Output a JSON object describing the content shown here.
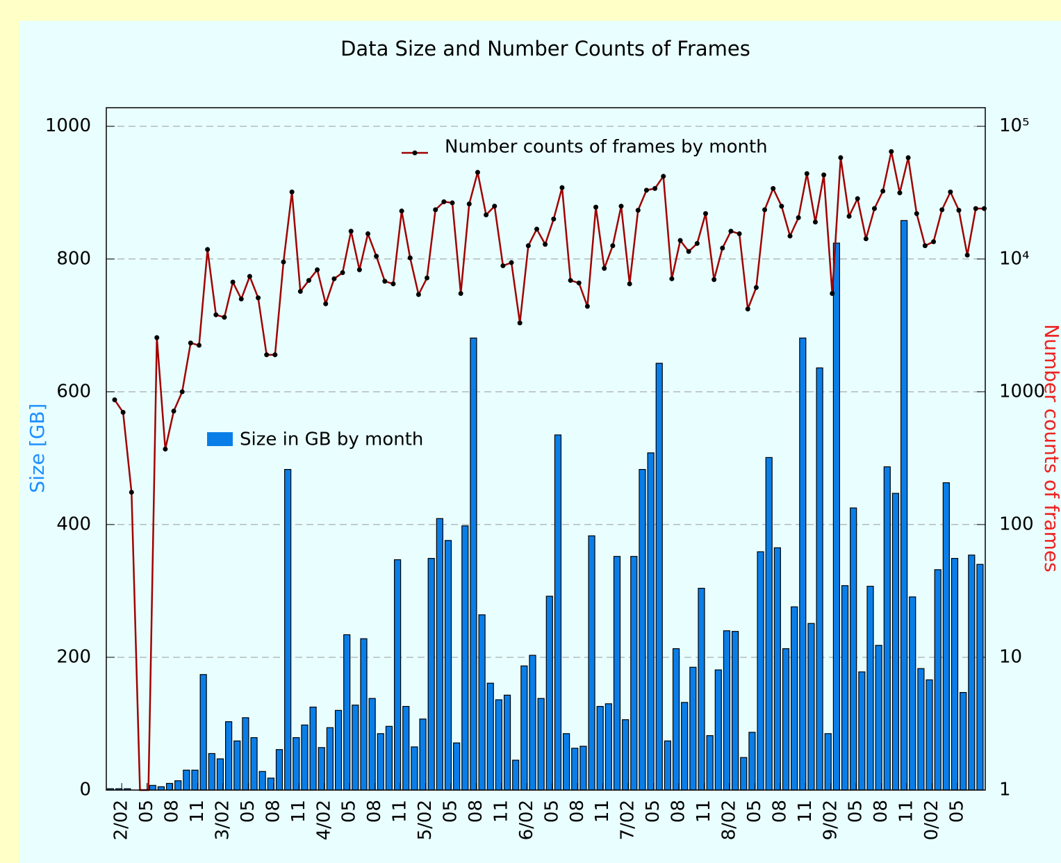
{
  "chart_data": {
    "type": "bar",
    "title": "Data Size and Number Counts of Frames",
    "y_label": "Size [GB]",
    "y2_label": "Number counts of frames",
    "categories": [
      null,
      "2/02",
      null,
      null,
      "05",
      null,
      null,
      "08",
      null,
      null,
      "11",
      null,
      null,
      "3/02",
      null,
      null,
      "05",
      null,
      null,
      "08",
      null,
      null,
      "11",
      null,
      null,
      "4/02",
      null,
      null,
      "05",
      null,
      null,
      "08",
      null,
      null,
      "11",
      null,
      null,
      "5/02",
      null,
      null,
      "05",
      null,
      null,
      "08",
      null,
      null,
      "11",
      null,
      null,
      "6/02",
      null,
      null,
      "05",
      null,
      null,
      "08",
      null,
      null,
      "11",
      null,
      null,
      "7/02",
      null,
      null,
      "05",
      null,
      null,
      "08",
      null,
      null,
      "11",
      null,
      null,
      "8/02",
      null,
      null,
      "05",
      null,
      null,
      "08",
      null,
      null,
      "11",
      null,
      null,
      "9/02",
      null,
      null,
      "05",
      null,
      null,
      "08",
      null,
      null,
      "11",
      null,
      null,
      "0/02",
      null,
      null,
      "05",
      null,
      null,
      null
    ],
    "series": [
      {
        "name": "Size in GB by month",
        "type": "bar",
        "axis": "y",
        "color": "#0a7ee8",
        "values": [
          2,
          2,
          2,
          0,
          0,
          7,
          5,
          10,
          14,
          30,
          30,
          174,
          55,
          47,
          103,
          74,
          109,
          79,
          28,
          18,
          61,
          483,
          79,
          98,
          125,
          64,
          94,
          120,
          234,
          128,
          228,
          138,
          85,
          96,
          347,
          126,
          65,
          107,
          349,
          409,
          376,
          71,
          398,
          681,
          264,
          161,
          136,
          143,
          45,
          187,
          203,
          138,
          292,
          535,
          85,
          63,
          66,
          383,
          126,
          130,
          352,
          106,
          352,
          483,
          508,
          643,
          74,
          213,
          132,
          185,
          304,
          82,
          181,
          240,
          239,
          49,
          87,
          359,
          501,
          365,
          213,
          276,
          681,
          251,
          636,
          85,
          824,
          308,
          425,
          178,
          307,
          218,
          487,
          447,
          858,
          291,
          183,
          166,
          332,
          463,
          349,
          147,
          354,
          340
        ]
      },
      {
        "name": "Number counts of frames by month",
        "type": "line",
        "axis": "y2",
        "color": "#a00000",
        "marker_color": "#000000",
        "values": [
          870,
          700,
          175,
          0,
          0,
          2560,
          370,
          715,
          1000,
          2330,
          2240,
          11800,
          3800,
          3640,
          6700,
          5000,
          7400,
          5100,
          1900,
          1900,
          9500,
          32000,
          5700,
          6900,
          8300,
          4600,
          7100,
          7900,
          16200,
          8300,
          15500,
          10500,
          6800,
          6500,
          23000,
          10200,
          5400,
          7200,
          23500,
          27000,
          26500,
          5500,
          26000,
          45000,
          21500,
          25000,
          8900,
          9400,
          3300,
          12600,
          16800,
          12900,
          20000,
          34500,
          6900,
          6600,
          4400,
          24600,
          8500,
          12600,
          25000,
          6500,
          23300,
          33000,
          34000,
          42000,
          7100,
          13800,
          11400,
          13100,
          22000,
          7000,
          12100,
          16200,
          15500,
          4200,
          6100,
          23500,
          34000,
          25000,
          14900,
          20500,
          44000,
          19000,
          43000,
          5500,
          58000,
          21000,
          28500,
          14200,
          24000,
          32500,
          64500,
          31500,
          58000,
          22000,
          12600,
          13500,
          23500,
          32000,
          23300,
          10700,
          24000,
          24000
        ]
      }
    ],
    "ylim": [
      0,
      1028
    ],
    "yticks": [
      0,
      200,
      400,
      600,
      800,
      1000
    ],
    "y2lim": [
      1,
      138000
    ],
    "y2log": true,
    "y2ticks": [
      1,
      10,
      100,
      1000,
      {
        "value": 10000,
        "label": "10⁴"
      },
      {
        "value": 100000,
        "label": "10⁵"
      }
    ],
    "grid": true
  }
}
